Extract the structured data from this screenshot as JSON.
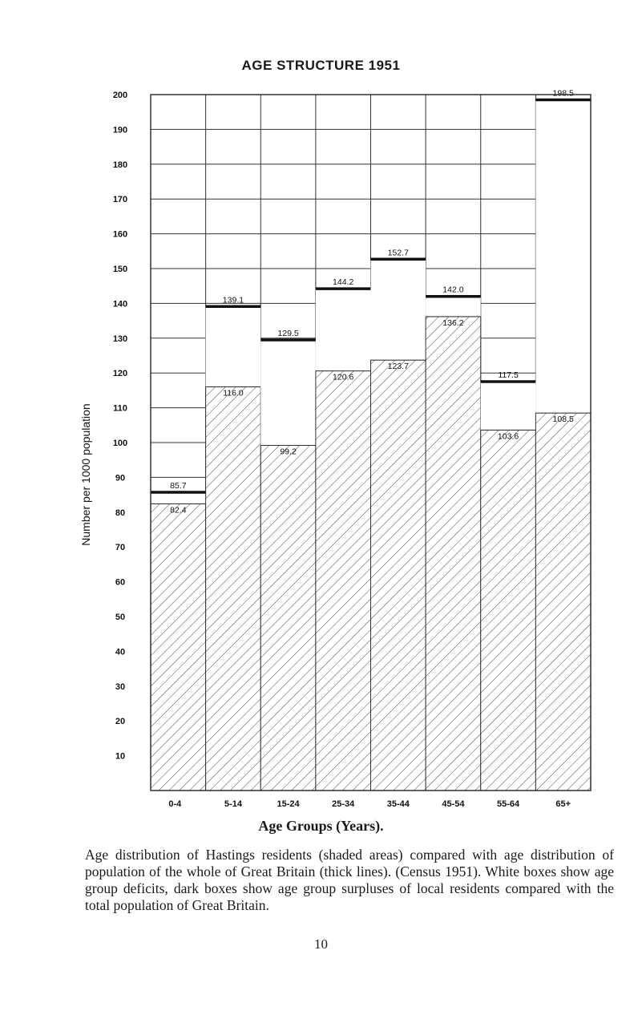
{
  "chart_data": {
    "type": "bar",
    "title": "AGE STRUCTURE 1951",
    "xlabel": "Age Groups (Years).",
    "ylabel": "Number per 1000 population",
    "ylim": [
      0,
      200
    ],
    "yticks": [
      10,
      20,
      30,
      40,
      50,
      60,
      70,
      80,
      90,
      100,
      110,
      120,
      130,
      140,
      150,
      160,
      170,
      180,
      190,
      200
    ],
    "categories": [
      "0-4",
      "5-14",
      "15-24",
      "25-34",
      "35-44",
      "45-54",
      "55-64",
      "65+"
    ],
    "series": [
      {
        "values": [
          82.4,
          116.0,
          99.2,
          120.6,
          123.7,
          136.2,
          103.6,
          108.5
        ],
        "labels": [
          "82.4",
          "116.0",
          "99.2",
          "120.6",
          "123.7",
          "136.2",
          "103.6",
          "108.5"
        ]
      },
      {
        "values": [
          85.7,
          139.1,
          129.5,
          144.2,
          152.7,
          142.0,
          117.5,
          198.5
        ],
        "labels": [
          "85.7",
          "139.1",
          "129.5",
          "144.2",
          "152.7",
          "142.0",
          "117.5",
          "198.5"
        ]
      }
    ],
    "grid": true
  },
  "caption": "Age distribution of Hastings residents (shaded areas) compared with age distribution of population of the whole of Great Britain (thick lines). (Census 1951). White boxes show age group deficits, dark boxes show age group surpluses of local residents compared with the total population of Great Britain.",
  "page_number": "10"
}
